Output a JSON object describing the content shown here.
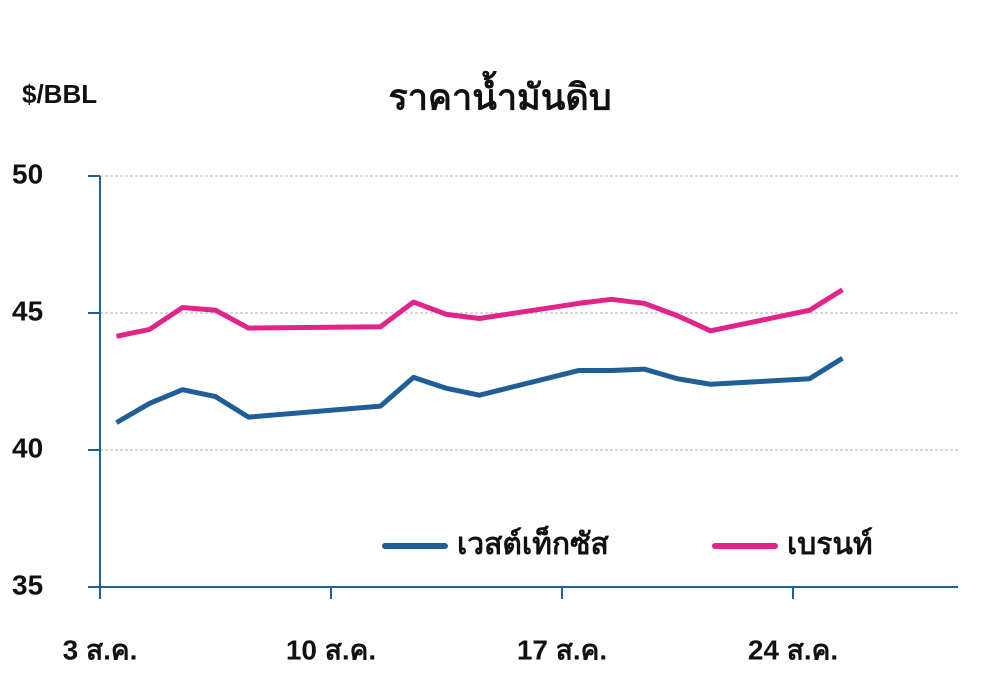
{
  "chart_data": {
    "type": "line",
    "title": "ราคาน้ำมันดิบ",
    "y_label": "$/BBL",
    "x": [
      3.5,
      4.5,
      5.5,
      6.5,
      7.5,
      11.5,
      12.5,
      13.5,
      14.5,
      17.5,
      18.5,
      19.5,
      20.5,
      21.5,
      24.5,
      25.5
    ],
    "series": [
      {
        "name": "เวสต์เท็กซัส",
        "color": "#1f5e96",
        "values": [
          41.0,
          41.7,
          42.2,
          41.95,
          41.2,
          41.6,
          42.65,
          42.25,
          42.0,
          42.9,
          42.9,
          42.95,
          42.6,
          42.4,
          42.6,
          43.35
        ]
      },
      {
        "name": "เบรนท์",
        "color": "#e0248a",
        "values": [
          44.15,
          44.4,
          45.2,
          45.1,
          44.45,
          44.5,
          45.4,
          44.95,
          44.8,
          45.35,
          45.5,
          45.35,
          44.9,
          44.35,
          45.1,
          45.85
        ]
      }
    ],
    "xlim": [
      3,
      29
    ],
    "xticks": [
      {
        "value": 3,
        "label": "3 ส.ค."
      },
      {
        "value": 10,
        "label": "10 ส.ค."
      },
      {
        "value": 17,
        "label": "17 ส.ค."
      },
      {
        "value": 24,
        "label": "24 ส.ค."
      }
    ],
    "ylim": [
      35,
      50
    ],
    "yticks": [
      35,
      40,
      45,
      50
    ],
    "grid": true
  }
}
